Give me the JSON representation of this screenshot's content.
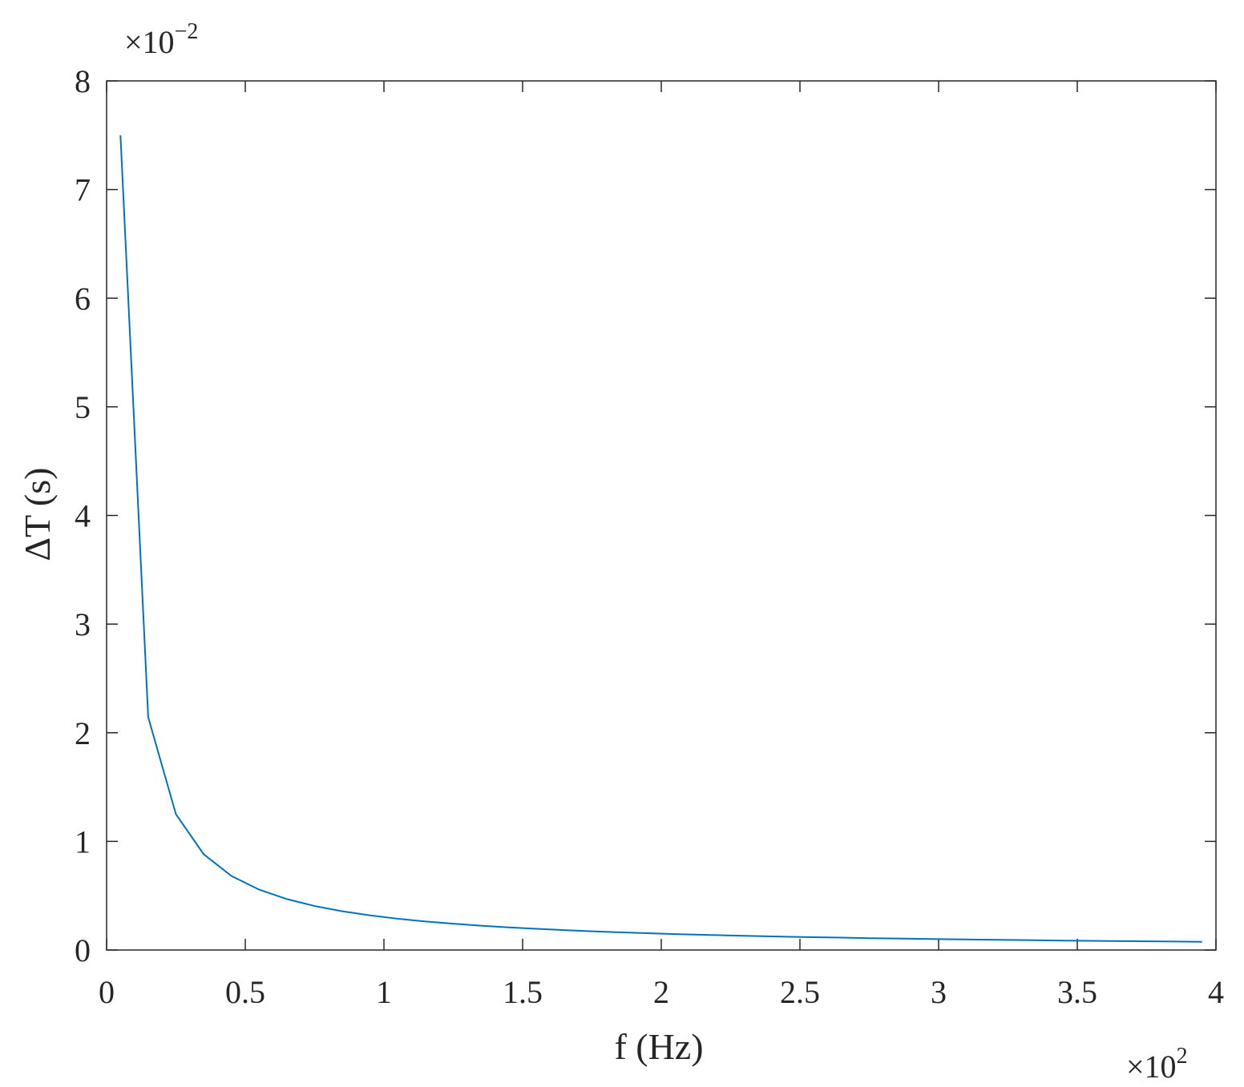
{
  "chart_data": {
    "type": "line",
    "xlabel": "f (Hz)",
    "ylabel": "ΔT (s)",
    "x_multiplier": {
      "base": "×10",
      "exponent": "2"
    },
    "y_multiplier": {
      "base": "×10",
      "exponent": "−2"
    },
    "x": [
      0.05,
      0.15,
      0.25,
      0.35,
      0.45,
      0.55,
      0.65,
      0.75,
      0.85,
      0.95,
      1.05,
      1.15,
      1.25,
      1.35,
      1.45,
      1.55,
      1.65,
      1.75,
      1.85,
      1.95,
      2.05,
      2.15,
      2.25,
      2.35,
      2.45,
      2.55,
      2.65,
      2.75,
      2.85,
      2.95,
      3.05,
      3.15,
      3.25,
      3.35,
      3.45,
      3.55,
      3.65,
      3.75,
      3.85,
      3.95
    ],
    "series": [
      {
        "color": "#0072bd",
        "values": [
          7.5,
          2.143,
          1.25,
          0.882,
          0.682,
          0.556,
          0.469,
          0.405,
          0.357,
          0.319,
          0.288,
          0.263,
          0.242,
          0.224,
          0.208,
          0.195,
          0.183,
          0.172,
          0.163,
          0.155,
          0.147,
          0.14,
          0.134,
          0.128,
          0.123,
          0.118,
          0.114,
          0.109,
          0.106,
          0.102,
          0.099,
          0.096,
          0.093,
          0.09,
          0.087,
          0.085,
          0.082,
          0.08,
          0.078,
          0.076
        ]
      }
    ],
    "xlim": [
      0,
      4
    ],
    "xticks": [
      0,
      0.5,
      1,
      1.5,
      2,
      2.5,
      3,
      3.5,
      4
    ],
    "ylim": [
      0,
      8
    ],
    "yticks": [
      0,
      1,
      2,
      3,
      4,
      5,
      6,
      7,
      8
    ]
  }
}
